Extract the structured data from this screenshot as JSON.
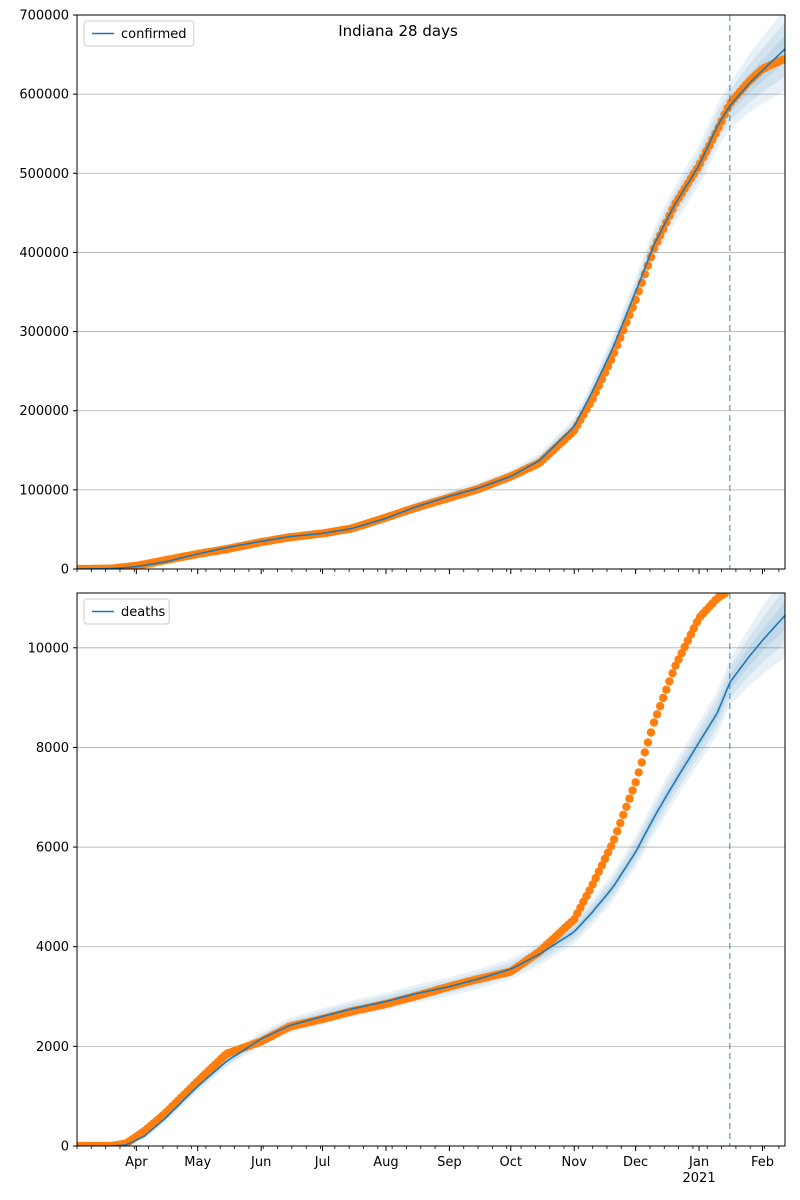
{
  "figure_title": "Indiana 28 days",
  "chart_data": [
    {
      "type": "line",
      "title": "",
      "xlabel": "",
      "ylabel": "",
      "legend": {
        "placement": "top-left",
        "entries": [
          "confirmed"
        ]
      },
      "grid": {
        "y": true,
        "x": false
      },
      "x_range": [
        "2020-03-03",
        "2021-02-12"
      ],
      "ylim": [
        0,
        700000
      ],
      "y_ticks": [
        0,
        100000,
        200000,
        300000,
        400000,
        500000,
        600000,
        700000
      ],
      "y_tick_labels": [
        "0",
        "100000",
        "200000",
        "300000",
        "400000",
        "500000",
        "600000",
        "700000"
      ],
      "forecast_start": "2021-01-16",
      "series": [
        {
          "name": "confirmed",
          "kind": "model",
          "color": "#1f77b4",
          "x": [
            "2020-03-03",
            "2020-03-20",
            "2020-04-01",
            "2020-04-15",
            "2020-05-01",
            "2020-05-15",
            "2020-06-01",
            "2020-06-15",
            "2020-07-01",
            "2020-07-15",
            "2020-08-01",
            "2020-08-15",
            "2020-09-01",
            "2020-09-15",
            "2020-10-01",
            "2020-10-15",
            "2020-11-01",
            "2020-11-10",
            "2020-11-20",
            "2020-12-01",
            "2020-12-10",
            "2020-12-20",
            "2021-01-01",
            "2021-01-10",
            "2021-01-16",
            "2021-01-25",
            "2021-02-01",
            "2021-02-12"
          ],
          "y": [
            0,
            500,
            3000,
            9000,
            19000,
            27000,
            35000,
            41000,
            45000,
            51000,
            64000,
            78000,
            92000,
            102000,
            117000,
            137000,
            180000,
            225000,
            280000,
            350000,
            410000,
            460000,
            510000,
            560000,
            585000,
            612000,
            630000,
            657000
          ]
        },
        {
          "name": "",
          "kind": "observed",
          "color": "#ff7f0e",
          "x": [
            "2020-03-03",
            "2020-03-20",
            "2020-04-01",
            "2020-04-15",
            "2020-05-01",
            "2020-05-15",
            "2020-06-01",
            "2020-06-15",
            "2020-07-01",
            "2020-07-15",
            "2020-08-01",
            "2020-08-15",
            "2020-09-01",
            "2020-09-15",
            "2020-10-01",
            "2020-10-15",
            "2020-11-01",
            "2020-11-10",
            "2020-11-20",
            "2020-12-01",
            "2020-12-10",
            "2020-12-20",
            "2021-01-01",
            "2021-01-10",
            "2021-01-16",
            "2021-01-25",
            "2021-02-01",
            "2021-02-12"
          ],
          "y": [
            0,
            500,
            4000,
            11000,
            19000,
            25000,
            34000,
            40000,
            45000,
            51000,
            65000,
            77000,
            90000,
            101000,
            117000,
            134000,
            175000,
            215000,
            270000,
            340000,
            405000,
            460000,
            510000,
            555000,
            588000,
            615000,
            632000,
            645000
          ]
        }
      ]
    },
    {
      "type": "line",
      "title": "",
      "xlabel": "",
      "ylabel": "",
      "legend": {
        "placement": "top-left",
        "entries": [
          "deaths"
        ]
      },
      "grid": {
        "y": true,
        "x": false
      },
      "x_range": [
        "2020-03-03",
        "2021-02-12"
      ],
      "ylim": [
        0,
        11100
      ],
      "y_ticks": [
        0,
        2000,
        4000,
        6000,
        8000,
        10000
      ],
      "y_tick_labels": [
        "0",
        "2000",
        "4000",
        "6000",
        "8000",
        "10000"
      ],
      "x_tick_labels": [
        "Apr",
        "May",
        "Jun",
        "Jul",
        "Aug",
        "Sep",
        "Oct",
        "Nov",
        "Dec",
        "Jan\n2021",
        "Feb"
      ],
      "x_tick_dates": [
        "2020-04-01",
        "2020-05-01",
        "2020-06-01",
        "2020-07-01",
        "2020-08-01",
        "2020-09-01",
        "2020-10-01",
        "2020-11-01",
        "2020-12-01",
        "2021-01-01",
        "2021-02-01"
      ],
      "forecast_start": "2021-01-16",
      "series": [
        {
          "name": "deaths",
          "kind": "model",
          "color": "#1f77b4",
          "x": [
            "2020-03-03",
            "2020-03-20",
            "2020-03-27",
            "2020-04-05",
            "2020-04-15",
            "2020-05-01",
            "2020-05-15",
            "2020-06-01",
            "2020-06-15",
            "2020-07-01",
            "2020-07-15",
            "2020-08-01",
            "2020-08-15",
            "2020-09-01",
            "2020-09-15",
            "2020-10-01",
            "2020-10-15",
            "2020-11-01",
            "2020-11-10",
            "2020-11-20",
            "2020-12-01",
            "2020-12-10",
            "2020-12-20",
            "2021-01-01",
            "2021-01-10",
            "2021-01-16",
            "2021-01-25",
            "2021-02-01",
            "2021-02-12"
          ],
          "y": [
            0,
            0,
            20,
            200,
            550,
            1200,
            1700,
            2150,
            2420,
            2600,
            2750,
            2900,
            3050,
            3200,
            3350,
            3550,
            3850,
            4300,
            4700,
            5200,
            5900,
            6600,
            7300,
            8100,
            8700,
            9300,
            9800,
            10150,
            10650
          ]
        },
        {
          "name": "",
          "kind": "observed",
          "color": "#ff7f0e",
          "x": [
            "2020-03-03",
            "2020-03-20",
            "2020-03-27",
            "2020-04-05",
            "2020-04-15",
            "2020-05-01",
            "2020-05-15",
            "2020-06-01",
            "2020-06-15",
            "2020-07-01",
            "2020-07-15",
            "2020-08-01",
            "2020-08-15",
            "2020-09-01",
            "2020-09-15",
            "2020-10-01",
            "2020-10-15",
            "2020-11-01",
            "2020-11-10",
            "2020-11-20",
            "2020-12-01",
            "2020-12-10",
            "2020-12-20",
            "2021-01-01",
            "2021-01-10",
            "2021-01-14"
          ],
          "y": [
            0,
            0,
            50,
            300,
            650,
            1300,
            1850,
            2100,
            2400,
            2550,
            2700,
            2850,
            3000,
            3200,
            3350,
            3500,
            3900,
            4550,
            5250,
            6100,
            7300,
            8500,
            9600,
            10600,
            11000,
            11100
          ]
        }
      ]
    }
  ]
}
